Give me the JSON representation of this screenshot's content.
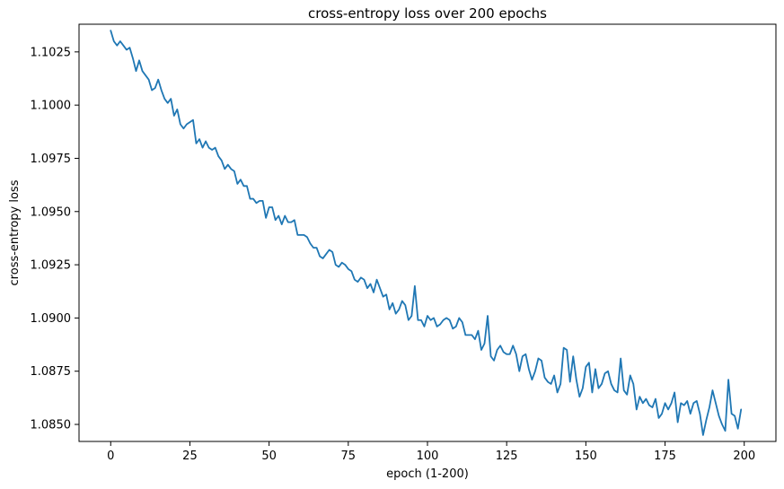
{
  "chart_data": {
    "type": "line",
    "title": "cross-entropy loss over 200 epochs",
    "xlabel": "epoch (1-200)",
    "ylabel": "cross-entropy loss",
    "xlim": [
      -10,
      210
    ],
    "ylim": [
      1.0842,
      1.1038
    ],
    "x_ticks": [
      0,
      25,
      50,
      75,
      100,
      125,
      150,
      175,
      200
    ],
    "x_tick_labels": [
      "0",
      "25",
      "50",
      "75",
      "100",
      "125",
      "150",
      "175",
      "200"
    ],
    "y_ticks": [
      1.085,
      1.0875,
      1.09,
      1.0925,
      1.095,
      1.0975,
      1.1,
      1.1025
    ],
    "y_tick_labels": [
      "1.0850",
      "1.0875",
      "1.0900",
      "1.0925",
      "1.0950",
      "1.0975",
      "1.1000",
      "1.1025"
    ],
    "grid": false,
    "line_color": "#1f77b4",
    "series": [
      {
        "x": [
          0,
          1,
          2,
          3,
          4,
          5,
          6,
          7,
          8,
          9,
          10,
          11,
          12,
          13,
          14,
          15,
          16,
          17,
          18,
          19,
          20,
          21,
          22,
          23,
          24,
          25,
          26,
          27,
          28,
          29,
          30,
          31,
          32,
          33,
          34,
          35,
          36,
          37,
          38,
          39,
          40,
          41,
          42,
          43,
          44,
          45,
          46,
          47,
          48,
          49,
          50,
          51,
          52,
          53,
          54,
          55,
          56,
          57,
          58,
          59,
          60,
          61,
          62,
          63,
          64,
          65,
          66,
          67,
          68,
          69,
          70,
          71,
          72,
          73,
          74,
          75,
          76,
          77,
          78,
          79,
          80,
          81,
          82,
          83,
          84,
          85,
          86,
          87,
          88,
          89,
          90,
          91,
          92,
          93,
          94,
          95,
          96,
          97,
          98,
          99,
          100,
          101,
          102,
          103,
          104,
          105,
          106,
          107,
          108,
          109,
          110,
          111,
          112,
          113,
          114,
          115,
          116,
          117,
          118,
          119,
          120,
          121,
          122,
          123,
          124,
          125,
          126,
          127,
          128,
          129,
          130,
          131,
          132,
          133,
          134,
          135,
          136,
          137,
          138,
          139,
          140,
          141,
          142,
          143,
          144,
          145,
          146,
          147,
          148,
          149,
          150,
          151,
          152,
          153,
          154,
          155,
          156,
          157,
          158,
          159,
          160,
          161,
          162,
          163,
          164,
          165,
          166,
          167,
          168,
          169,
          170,
          171,
          172,
          173,
          174,
          175,
          176,
          177,
          178,
          179,
          180,
          181,
          182,
          183,
          184,
          185,
          186,
          187,
          188,
          189,
          190,
          191,
          192,
          193,
          194,
          195,
          196,
          197,
          198,
          199
        ],
        "values": [
          1.1035,
          1.103,
          1.1028,
          1.103,
          1.1028,
          1.1026,
          1.1027,
          1.1022,
          1.1016,
          1.1021,
          1.1016,
          1.1014,
          1.1012,
          1.1007,
          1.1008,
          1.1012,
          1.1007,
          1.1003,
          1.1001,
          1.1003,
          1.0995,
          1.0998,
          1.0991,
          1.0989,
          1.0991,
          1.0992,
          1.0993,
          1.0982,
          1.0984,
          1.098,
          1.0983,
          1.098,
          1.0979,
          1.098,
          1.0976,
          1.0974,
          1.097,
          1.0972,
          1.097,
          1.0969,
          1.0963,
          1.0965,
          1.0962,
          1.0962,
          1.0956,
          1.0956,
          1.0954,
          1.0955,
          1.0955,
          1.0947,
          1.0952,
          1.0952,
          1.0946,
          1.0948,
          1.0944,
          1.0948,
          1.0945,
          1.0945,
          1.0946,
          1.0939,
          1.0939,
          1.0939,
          1.0938,
          1.0935,
          1.0933,
          1.0933,
          1.0929,
          1.0928,
          1.093,
          1.0932,
          1.0931,
          1.0925,
          1.0924,
          1.0926,
          1.0925,
          1.0923,
          1.0922,
          1.0918,
          1.0917,
          1.0919,
          1.0918,
          1.0914,
          1.0916,
          1.0912,
          1.0918,
          1.0914,
          1.091,
          1.0911,
          1.0904,
          1.0907,
          1.0902,
          1.0904,
          1.0908,
          1.0906,
          1.0899,
          1.0901,
          1.0915,
          1.0899,
          1.0899,
          1.0896,
          1.0901,
          1.0899,
          1.09,
          1.0896,
          1.0897,
          1.0899,
          1.09,
          1.0899,
          1.0895,
          1.0896,
          1.09,
          1.0898,
          1.0892,
          1.0892,
          1.0892,
          1.089,
          1.0894,
          1.0885,
          1.0888,
          1.0901,
          1.0882,
          1.088,
          1.0885,
          1.0887,
          1.0884,
          1.0883,
          1.0883,
          1.0887,
          1.0883,
          1.0875,
          1.0882,
          1.0883,
          1.0876,
          1.0871,
          1.0875,
          1.0881,
          1.088,
          1.0872,
          1.087,
          1.0869,
          1.0873,
          1.0865,
          1.0869,
          1.0886,
          1.0885,
          1.087,
          1.0882,
          1.0871,
          1.0863,
          1.0867,
          1.0877,
          1.0879,
          1.0865,
          1.0876,
          1.0867,
          1.0869,
          1.0874,
          1.0875,
          1.0869,
          1.0866,
          1.0865,
          1.0881,
          1.0866,
          1.0864,
          1.0873,
          1.0869,
          1.0857,
          1.0863,
          1.086,
          1.0862,
          1.0859,
          1.0858,
          1.0862,
          1.0853,
          1.0855,
          1.086,
          1.0857,
          1.086,
          1.0865,
          1.0851,
          1.086,
          1.0859,
          1.0861,
          1.0855,
          1.086,
          1.0861,
          1.0855,
          1.0845,
          1.0852,
          1.0858,
          1.0866,
          1.086,
          1.0854,
          1.085,
          1.0847,
          1.0871,
          1.0855,
          1.0854,
          1.0848,
          1.0857
        ]
      }
    ]
  }
}
